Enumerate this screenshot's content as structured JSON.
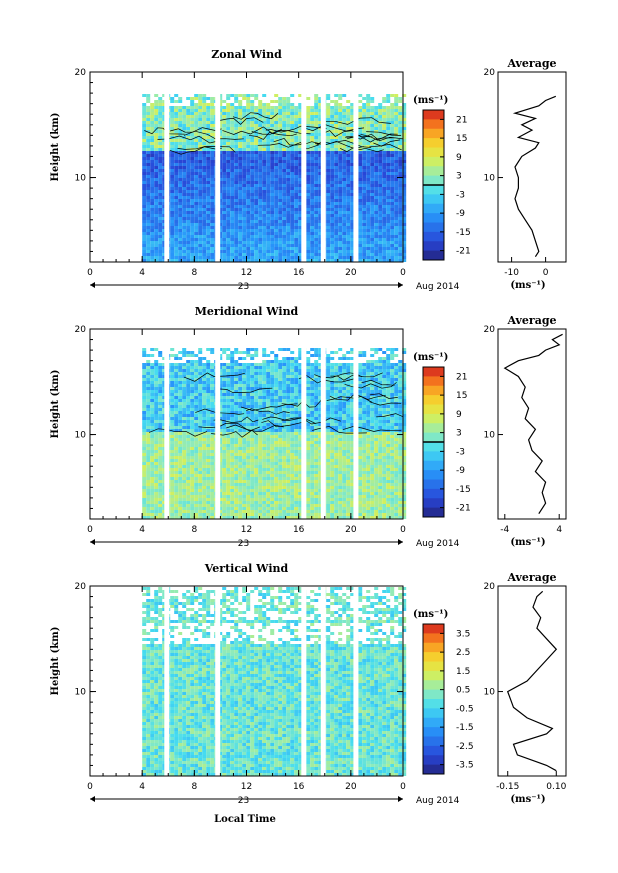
{
  "x_axis_label": "Local Time",
  "chart_data": [
    {
      "type": "heatmap",
      "title": "Zonal Wind",
      "ylabel": "Height (km)",
      "xlabel": "Local Time",
      "x_ticks": [
        "0",
        "4",
        "8",
        "12",
        "16",
        "20",
        "0"
      ],
      "date_label": "23",
      "month_label": "Aug 2014",
      "y_ticks": [
        "10",
        "20"
      ],
      "xlim": [
        0,
        24
      ],
      "ylim": [
        2,
        20
      ],
      "data_x_range": [
        4,
        24
      ],
      "data_top": 17.7,
      "gaps_hours": [
        5.7,
        9.6,
        16.2,
        17.7,
        20.2
      ],
      "colorbar": {
        "unit": "(ms⁻¹)",
        "ticks": [
          "21",
          "15",
          "9",
          "3",
          "-3",
          "-9",
          "-15",
          "-21"
        ],
        "range": [
          -24,
          24
        ],
        "zero_line": true
      },
      "profile": {
        "title": "Average",
        "xlabel": "(ms⁻¹)",
        "x_ticks": [
          "-10",
          "0"
        ],
        "xlim": [
          -14,
          6
        ],
        "points": [
          [
            -3,
            2.5
          ],
          [
            -2,
            3
          ],
          [
            -3,
            4
          ],
          [
            -4,
            5
          ],
          [
            -6,
            6
          ],
          [
            -8,
            7
          ],
          [
            -9,
            8
          ],
          [
            -8,
            9
          ],
          [
            -8,
            10
          ],
          [
            -9,
            11
          ],
          [
            -7,
            12
          ],
          [
            -3,
            12.8
          ],
          [
            -2,
            13.3
          ],
          [
            -8,
            13.8
          ],
          [
            -4,
            14.5
          ],
          [
            -7,
            15
          ],
          [
            -3,
            15.6
          ],
          [
            -9,
            16.1
          ],
          [
            -2,
            16.8
          ],
          [
            0,
            17.3
          ],
          [
            3,
            17.7
          ]
        ]
      },
      "field": {
        "base": -8,
        "top_base": 2,
        "slope": -0.8,
        "noise": 4,
        "contour_band": [
          12.5,
          16
        ]
      }
    },
    {
      "type": "heatmap",
      "title": "Meridional Wind",
      "ylabel": "Height (km)",
      "xlabel": "Local Time",
      "x_ticks": [
        "0",
        "4",
        "8",
        "12",
        "16",
        "20",
        "0"
      ],
      "date_label": "23",
      "month_label": "Aug 2014",
      "y_ticks": [
        "10",
        "20"
      ],
      "xlim": [
        0,
        24
      ],
      "ylim": [
        2,
        20
      ],
      "data_x_range": [
        4,
        24
      ],
      "data_top": 18,
      "gaps_hours": [
        5.7,
        9.6,
        16.2,
        17.7,
        20.2
      ],
      "colorbar": {
        "unit": "(ms⁻¹)",
        "ticks": [
          "21",
          "15",
          "9",
          "3",
          "-3",
          "-9",
          "-15",
          "-21"
        ],
        "range": [
          -24,
          24
        ],
        "zero_line": true
      },
      "profile": {
        "title": "Average",
        "xlabel": "(ms⁻¹)",
        "x_ticks": [
          "-4",
          "4"
        ],
        "xlim": [
          -5,
          5
        ],
        "points": [
          [
            1,
            2.5
          ],
          [
            2,
            3.5
          ],
          [
            1.5,
            4.5
          ],
          [
            2,
            5.5
          ],
          [
            0.5,
            6.5
          ],
          [
            1.5,
            7.5
          ],
          [
            0,
            8.5
          ],
          [
            -0.5,
            9.5
          ],
          [
            0.5,
            10.5
          ],
          [
            -1,
            11.5
          ],
          [
            -0.5,
            12.5
          ],
          [
            -1.5,
            13.5
          ],
          [
            -1,
            14.5
          ],
          [
            -2,
            15.5
          ],
          [
            -4,
            16.3
          ],
          [
            -2,
            17
          ],
          [
            1,
            17.5
          ],
          [
            2,
            18
          ],
          [
            4,
            18.5
          ],
          [
            3,
            19
          ],
          [
            4.5,
            19.5
          ]
        ]
      },
      "field": {
        "base": 4,
        "top_base": -4,
        "slope": 0,
        "noise": 4,
        "contour_band": [
          10,
          16
        ]
      }
    },
    {
      "type": "heatmap",
      "title": "Vertical Wind",
      "ylabel": "Height (km)",
      "xlabel": "Local Time",
      "x_ticks": [
        "0",
        "4",
        "8",
        "12",
        "16",
        "20",
        "0"
      ],
      "date_label": "23",
      "month_label": "Aug 2014",
      "y_ticks": [
        "10",
        "20"
      ],
      "xlim": [
        0,
        24
      ],
      "ylim": [
        2,
        20
      ],
      "data_x_range": [
        4,
        24
      ],
      "data_top": 19.8,
      "gaps_hours": [
        5.7,
        9.6,
        16.2,
        17.7,
        20.2
      ],
      "colorbar": {
        "unit": "(ms⁻¹)",
        "ticks": [
          "3.5",
          "2.5",
          "1.5",
          "0.5",
          "-0.5",
          "-1.5",
          "-2.5",
          "-3.5"
        ],
        "range": [
          -4,
          4
        ],
        "zero_line": false
      },
      "profile": {
        "title": "Average",
        "xlabel": "(ms⁻¹)",
        "x_ticks": [
          "-0.15",
          "0.10"
        ],
        "xlim": [
          -0.2,
          0.15
        ],
        "points": [
          [
            0.1,
            2.5
          ],
          [
            0.05,
            3
          ],
          [
            -0.1,
            4
          ],
          [
            -0.12,
            5
          ],
          [
            0.05,
            6
          ],
          [
            0.08,
            6.5
          ],
          [
            -0.05,
            7.5
          ],
          [
            -0.12,
            8.5
          ],
          [
            -0.15,
            10
          ],
          [
            -0.05,
            11
          ],
          [
            0.0,
            12
          ],
          [
            0.05,
            13
          ],
          [
            0.1,
            14
          ],
          [
            0.05,
            15
          ],
          [
            0.0,
            16
          ],
          [
            0.02,
            17
          ],
          [
            -0.02,
            18
          ],
          [
            0.0,
            19
          ],
          [
            0.03,
            19.5
          ]
        ]
      },
      "field": {
        "base": 0,
        "top_base": 0,
        "slope": 0,
        "noise": 0.8,
        "contour_band": [
          0,
          0
        ]
      }
    }
  ]
}
